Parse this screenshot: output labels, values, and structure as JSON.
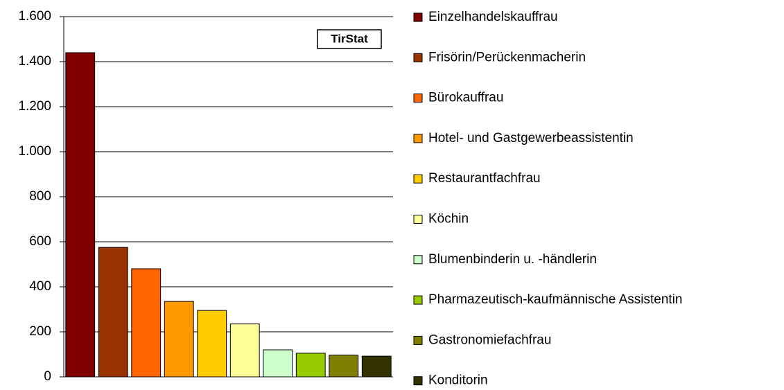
{
  "chart_data": {
    "type": "bar",
    "annotation": "TirStat",
    "categories": [
      "Einzelhandelskauffrau",
      "Frisörin/Perückenmacherin",
      "Bürokauffrau",
      "Hotel- und Gastgewerbeassistentin",
      "Restaurantfachfrau",
      "Köchin",
      "Blumenbinderin u. -händlerin",
      "Pharmazeutisch-kaufmännische Assistentin",
      "Gastronomiefachfrau",
      "Konditorin"
    ],
    "values": [
      1440,
      575,
      480,
      335,
      295,
      235,
      120,
      105,
      97,
      92
    ],
    "colors": [
      "#800000",
      "#993300",
      "#ff6600",
      "#ff9900",
      "#ffcc00",
      "#ffff99",
      "#ccffcc",
      "#99cc00",
      "#808000",
      "#333300"
    ],
    "ylim": [
      0,
      1600
    ],
    "yticks": [
      0,
      200,
      400,
      600,
      800,
      {
        "value": 1000,
        "label": "1.000"
      },
      {
        "value": 1200,
        "label": "1.200"
      },
      {
        "value": 1400,
        "label": "1.400"
      },
      {
        "value": 1600,
        "label": "1.600"
      }
    ],
    "grid": true,
    "legend": "right"
  }
}
